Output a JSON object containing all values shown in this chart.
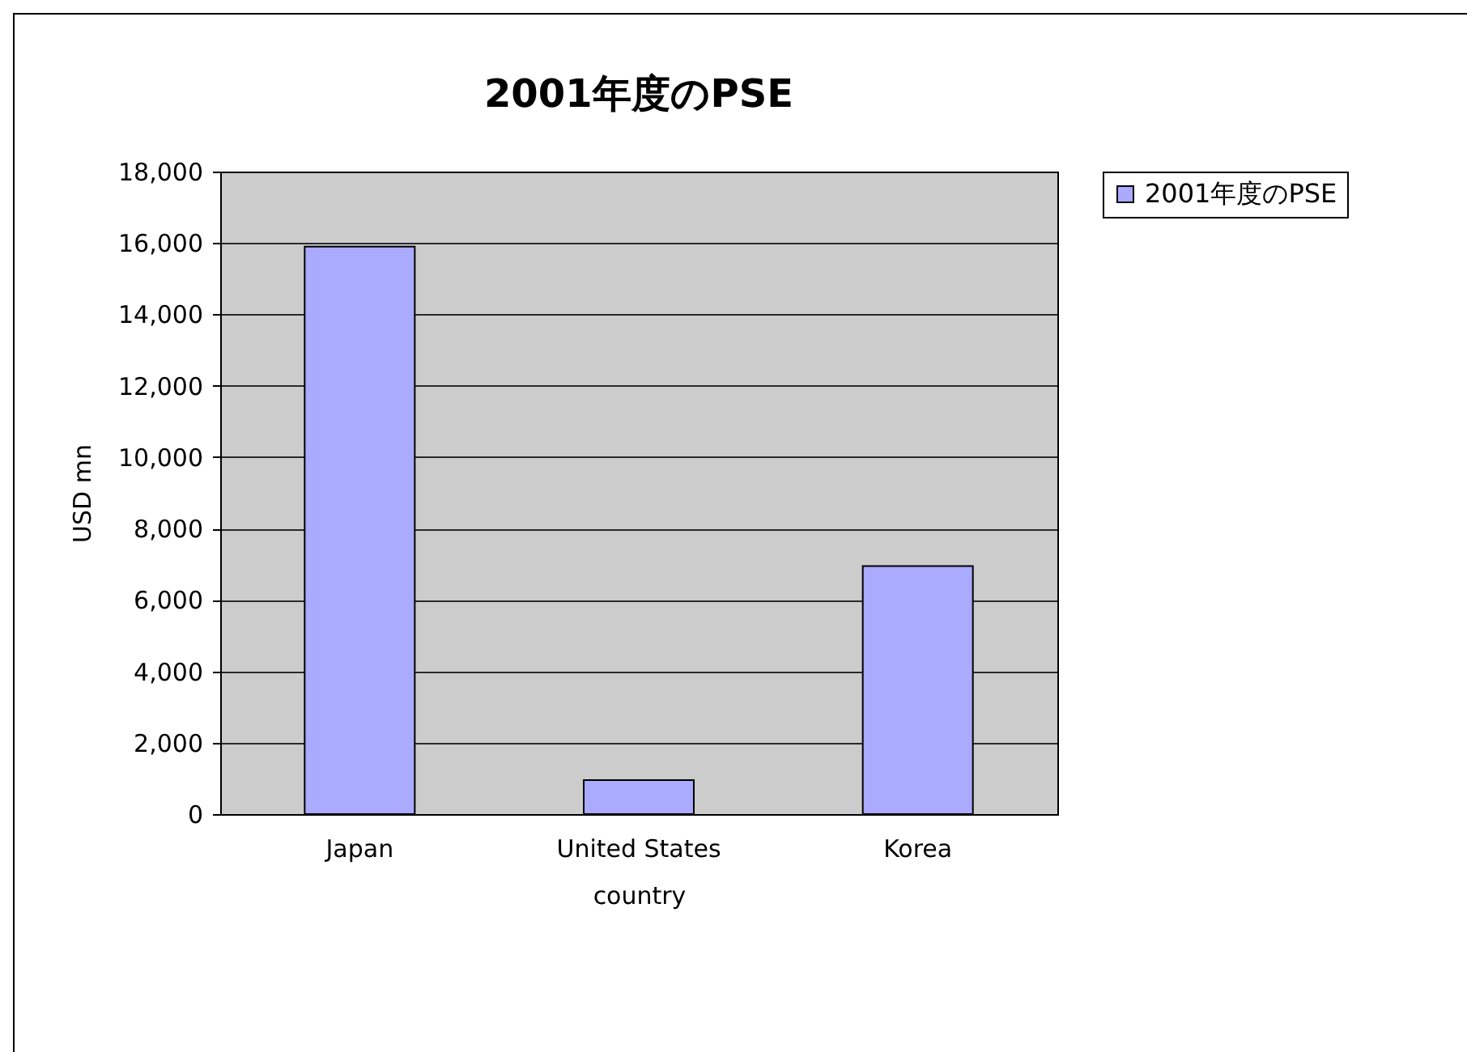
{
  "chart_data": {
    "type": "bar",
    "title": "2001年度のPSE",
    "xlabel": "country",
    "ylabel": "USD mn",
    "categories": [
      "Japan",
      "United States",
      "Korea"
    ],
    "series": [
      {
        "name": "2001年度のPSE",
        "color": "#aaaaff",
        "values": [
          15900,
          950,
          6950
        ]
      }
    ],
    "ylim": [
      0,
      18000
    ],
    "yticks": [
      {
        "value": 0,
        "label": "0"
      },
      {
        "value": 2000,
        "label": "2,000"
      },
      {
        "value": 4000,
        "label": "4,000"
      },
      {
        "value": 6000,
        "label": "6,000"
      },
      {
        "value": 8000,
        "label": "8,000"
      },
      {
        "value": 10000,
        "label": "10,000"
      },
      {
        "value": 12000,
        "label": "12,000"
      },
      {
        "value": 14000,
        "label": "14,000"
      },
      {
        "value": 16000,
        "label": "16,000"
      },
      {
        "value": 18000,
        "label": "18,000"
      }
    ],
    "grid": "y",
    "legend": "right"
  }
}
